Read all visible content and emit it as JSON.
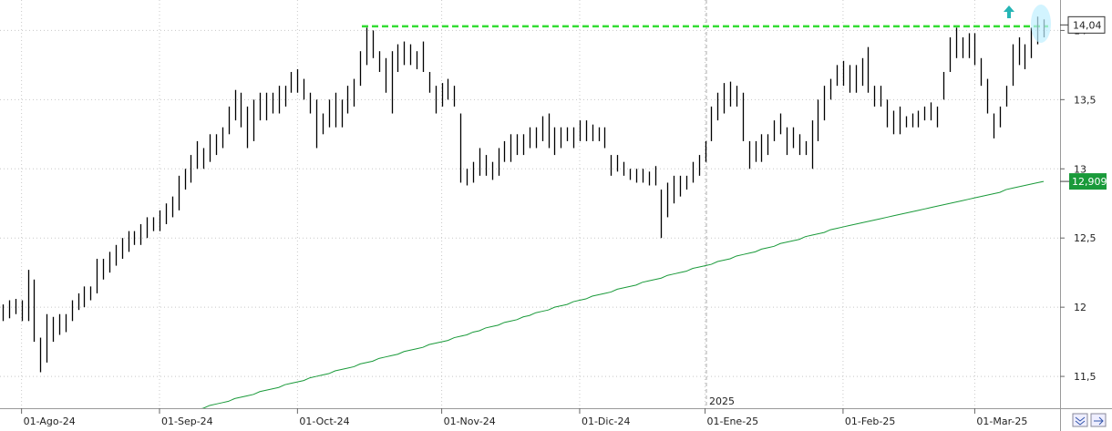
{
  "chart_data": {
    "type": "ohlc",
    "categories": [
      null,
      null,
      null,
      "01-Ago-24",
      null,
      null,
      null,
      null,
      null,
      null,
      null,
      null,
      null,
      null,
      null,
      null,
      null,
      null,
      null,
      null,
      null,
      null,
      null,
      null,
      null,
      "01-Sep-24",
      null,
      null,
      null,
      null,
      null,
      null,
      null,
      null,
      null,
      null,
      null,
      null,
      null,
      null,
      null,
      null,
      null,
      null,
      null,
      null,
      null,
      "01-Oct-24",
      null,
      null,
      null,
      null,
      null,
      null,
      null,
      null,
      null,
      null,
      null,
      null,
      null,
      null,
      null,
      null,
      null,
      null,
      null,
      null,
      null,
      null,
      "01-Nov-24",
      null,
      null,
      null,
      null,
      null,
      null,
      null,
      null,
      null,
      null,
      null,
      null,
      null,
      null,
      null,
      null,
      null,
      null,
      null,
      null,
      null,
      "01-Dic-24",
      null,
      null,
      null,
      null,
      null,
      null,
      null,
      null,
      null,
      null,
      null,
      null,
      null,
      null,
      null,
      null,
      null,
      null,
      null,
      "01-Ene-25",
      null,
      null,
      null,
      null,
      null,
      null,
      null,
      null,
      null,
      null,
      null,
      null,
      null,
      null,
      null,
      null,
      null,
      null,
      null,
      null,
      null,
      "01-Feb-25",
      null,
      null,
      null,
      null,
      null,
      null,
      null,
      null,
      null,
      null,
      null,
      null,
      null,
      null,
      null,
      null,
      null,
      null,
      null,
      null,
      "01-Mar-25",
      null,
      null,
      null,
      null,
      null,
      null,
      null,
      null,
      null,
      null,
      null
    ],
    "high": [
      12.02,
      12.05,
      12.06,
      12.05,
      12.27,
      12.2,
      11.78,
      11.95,
      11.93,
      11.95,
      11.95,
      12.05,
      12.1,
      12.15,
      12.15,
      12.35,
      12.35,
      12.4,
      12.45,
      12.5,
      12.55,
      12.55,
      12.6,
      12.65,
      12.65,
      12.7,
      12.75,
      12.8,
      12.95,
      13.0,
      13.1,
      13.2,
      13.15,
      13.25,
      13.25,
      13.3,
      13.45,
      13.57,
      13.55,
      13.45,
      13.5,
      13.55,
      13.55,
      13.55,
      13.6,
      13.6,
      13.7,
      13.72,
      13.65,
      13.55,
      13.5,
      13.4,
      13.5,
      13.55,
      13.5,
      13.6,
      13.65,
      13.85,
      14.02,
      14.0,
      13.85,
      13.8,
      13.85,
      13.9,
      13.92,
      13.9,
      13.85,
      13.92,
      13.7,
      13.6,
      13.62,
      13.65,
      13.6,
      13.4,
      13.0,
      13.05,
      13.15,
      13.1,
      13.05,
      13.15,
      13.2,
      13.25,
      13.25,
      13.25,
      13.3,
      13.3,
      13.38,
      13.4,
      13.3,
      13.3,
      13.3,
      13.3,
      13.35,
      13.35,
      13.32,
      13.3,
      13.3,
      13.1,
      13.1,
      13.05,
      13.0,
      13.0,
      13.0,
      12.98,
      13.02,
      12.85,
      12.9,
      12.95,
      12.95,
      12.95,
      13.05,
      13.1,
      13.2,
      13.45,
      13.55,
      13.62,
      13.63,
      13.6,
      13.55,
      13.2,
      13.2,
      13.25,
      13.25,
      13.35,
      13.4,
      13.3,
      13.3,
      13.25,
      13.2,
      13.35,
      13.5,
      13.6,
      13.65,
      13.75,
      13.78,
      13.75,
      13.75,
      13.8,
      13.88,
      13.6,
      13.6,
      13.5,
      13.42,
      13.45,
      13.38,
      13.4,
      13.42,
      13.45,
      13.48,
      13.45,
      13.7,
      13.95,
      14.02,
      13.95,
      13.98,
      13.98,
      13.8,
      13.65,
      13.4,
      13.45,
      13.6,
      13.9,
      13.95,
      13.9,
      14.02,
      14.1,
      14.08
    ],
    "low": [
      11.9,
      11.92,
      11.95,
      11.9,
      11.9,
      11.75,
      11.53,
      11.6,
      11.75,
      11.8,
      11.82,
      11.9,
      11.98,
      12.0,
      12.05,
      12.1,
      12.2,
      12.25,
      12.3,
      12.35,
      12.4,
      12.45,
      12.45,
      12.5,
      12.55,
      12.55,
      12.6,
      12.65,
      12.7,
      12.85,
      12.9,
      13.0,
      13.0,
      13.05,
      13.1,
      13.15,
      13.25,
      13.35,
      13.3,
      13.15,
      13.2,
      13.35,
      13.35,
      13.4,
      13.4,
      13.45,
      13.55,
      13.55,
      13.5,
      13.4,
      13.15,
      13.25,
      13.3,
      13.3,
      13.3,
      13.4,
      13.45,
      13.6,
      13.75,
      13.8,
      13.7,
      13.55,
      13.4,
      13.7,
      13.75,
      13.75,
      13.72,
      13.7,
      13.55,
      13.4,
      13.45,
      13.5,
      13.45,
      12.9,
      12.88,
      12.9,
      12.95,
      12.95,
      12.92,
      12.95,
      13.05,
      13.05,
      13.1,
      13.1,
      13.15,
      13.15,
      13.2,
      13.15,
      13.1,
      13.15,
      13.2,
      13.15,
      13.2,
      13.2,
      13.2,
      13.2,
      13.15,
      12.95,
      12.98,
      12.95,
      12.92,
      12.9,
      12.9,
      12.88,
      12.88,
      12.5,
      12.65,
      12.75,
      12.8,
      12.85,
      12.9,
      12.95,
      13.05,
      13.2,
      13.35,
      13.4,
      13.45,
      13.45,
      13.2,
      13.0,
      13.05,
      13.05,
      13.1,
      13.2,
      13.25,
      13.1,
      13.15,
      13.1,
      13.1,
      13.0,
      13.2,
      13.35,
      13.5,
      13.6,
      13.6,
      13.55,
      13.55,
      13.6,
      13.55,
      13.45,
      13.45,
      13.3,
      13.25,
      13.25,
      13.3,
      13.3,
      13.3,
      13.35,
      13.35,
      13.3,
      13.5,
      13.7,
      13.8,
      13.8,
      13.8,
      13.75,
      13.6,
      13.4,
      13.22,
      13.3,
      13.45,
      13.6,
      13.75,
      13.72,
      13.8,
      13.9,
      13.95
    ],
    "bar_color": "#000000",
    "moving_average": {
      "color": "#1a9a3a",
      "values": [
        null,
        null,
        null,
        null,
        null,
        null,
        null,
        null,
        null,
        null,
        null,
        null,
        null,
        null,
        null,
        null,
        null,
        null,
        null,
        null,
        null,
        null,
        null,
        null,
        null,
        null,
        null,
        null,
        null,
        null,
        null,
        11.26,
        11.27,
        11.29,
        11.3,
        11.31,
        11.32,
        11.34,
        11.35,
        11.36,
        11.37,
        11.39,
        11.4,
        11.41,
        11.42,
        11.44,
        11.45,
        11.46,
        11.47,
        11.49,
        11.5,
        11.51,
        11.52,
        11.54,
        11.55,
        11.56,
        11.57,
        11.59,
        11.6,
        11.61,
        11.63,
        11.64,
        11.65,
        11.66,
        11.68,
        11.69,
        11.7,
        11.71,
        11.73,
        11.74,
        11.75,
        11.76,
        11.78,
        11.79,
        11.8,
        11.82,
        11.83,
        11.85,
        11.86,
        11.87,
        11.89,
        11.9,
        11.91,
        11.93,
        11.94,
        11.96,
        11.97,
        11.98,
        12.0,
        12.01,
        12.02,
        12.04,
        12.05,
        12.06,
        12.08,
        12.09,
        12.1,
        12.11,
        12.13,
        12.14,
        12.15,
        12.16,
        12.18,
        12.19,
        12.2,
        12.21,
        12.23,
        12.24,
        12.25,
        12.26,
        12.28,
        12.29,
        12.3,
        12.31,
        12.33,
        12.34,
        12.35,
        12.37,
        12.38,
        12.39,
        12.4,
        12.42,
        12.43,
        12.44,
        12.46,
        12.47,
        12.48,
        12.49,
        12.51,
        12.52,
        12.53,
        12.54,
        12.56,
        12.57,
        12.58,
        12.59,
        12.6,
        12.61,
        12.62,
        12.63,
        12.64,
        12.65,
        12.66,
        12.67,
        12.68,
        12.69,
        12.7,
        12.71,
        12.72,
        12.73,
        12.74,
        12.75,
        12.76,
        12.77,
        12.78,
        12.79,
        12.8,
        12.81,
        12.82,
        12.83,
        12.85,
        12.86,
        12.87,
        12.88,
        12.89,
        12.9,
        12.909
      ]
    },
    "reference_line": {
      "value": 14.03,
      "color": "#33dd33"
    },
    "last_price": {
      "value": 14.04,
      "label": "14,04"
    },
    "ma_tag": {
      "value": 12.909,
      "label": "12,909",
      "color": "#1a9a3a"
    },
    "year_label": "2025",
    "ylim": [
      11.27,
      14.22
    ],
    "yticks": [
      {
        "value": 11.5,
        "label": "11,5"
      },
      12,
      {
        "value": 12.5,
        "label": "12,5"
      },
      13,
      {
        "value": 13.5,
        "label": "13,5"
      },
      14
    ],
    "grid": true
  }
}
